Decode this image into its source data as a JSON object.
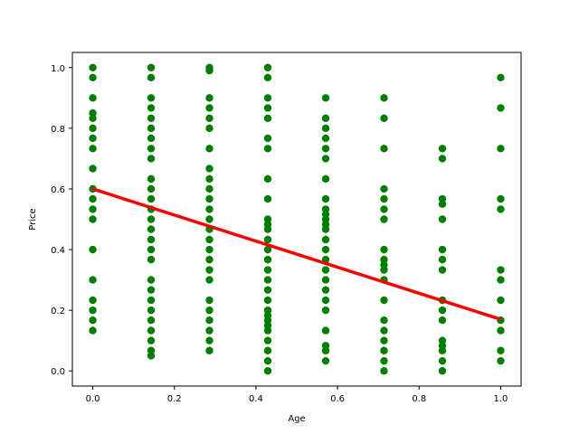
{
  "chart_data": {
    "type": "scatter",
    "title": "",
    "xlabel": "Age",
    "ylabel": "Price",
    "xlim": [
      -0.05,
      1.05
    ],
    "ylim": [
      -0.05,
      1.05
    ],
    "xticks": [
      "0.0",
      "0.2",
      "0.4",
      "0.6",
      "0.8",
      "1.0"
    ],
    "yticks": [
      "0.0",
      "0.2",
      "0.4",
      "0.6",
      "0.8",
      "1.0"
    ],
    "grid": false,
    "legend": "none",
    "colors": {
      "points": "#008000",
      "line": "#ff0000"
    },
    "series": [
      {
        "type": "scatter",
        "points": [
          [
            0,
            1.0
          ],
          [
            0,
            0.967
          ],
          [
            0,
            0.9
          ],
          [
            0,
            0.85
          ],
          [
            0,
            0.833
          ],
          [
            0,
            0.8
          ],
          [
            0,
            0.767
          ],
          [
            0,
            0.733
          ],
          [
            0,
            0.667
          ],
          [
            0,
            0.6
          ],
          [
            0,
            0.567
          ],
          [
            0,
            0.533
          ],
          [
            0,
            0.5
          ],
          [
            0,
            0.4
          ],
          [
            0,
            0.3
          ],
          [
            0,
            0.233
          ],
          [
            0,
            0.2
          ],
          [
            0,
            0.167
          ],
          [
            0,
            0.133
          ],
          [
            0.143,
            1.0
          ],
          [
            0.143,
            0.967
          ],
          [
            0.143,
            0.9
          ],
          [
            0.143,
            0.867
          ],
          [
            0.143,
            0.833
          ],
          [
            0.143,
            0.8
          ],
          [
            0.143,
            0.767
          ],
          [
            0.143,
            0.733
          ],
          [
            0.143,
            0.7
          ],
          [
            0.143,
            0.633
          ],
          [
            0.143,
            0.6
          ],
          [
            0.143,
            0.567
          ],
          [
            0.143,
            0.533
          ],
          [
            0.143,
            0.5
          ],
          [
            0.143,
            0.467
          ],
          [
            0.143,
            0.433
          ],
          [
            0.143,
            0.4
          ],
          [
            0.143,
            0.367
          ],
          [
            0.143,
            0.3
          ],
          [
            0.143,
            0.267
          ],
          [
            0.143,
            0.233
          ],
          [
            0.143,
            0.2
          ],
          [
            0.143,
            0.167
          ],
          [
            0.143,
            0.133
          ],
          [
            0.143,
            0.1
          ],
          [
            0.143,
            0.067
          ],
          [
            0.143,
            0.05
          ],
          [
            0.286,
            1.0
          ],
          [
            0.286,
            0.99
          ],
          [
            0.286,
            0.9
          ],
          [
            0.286,
            0.867
          ],
          [
            0.286,
            0.833
          ],
          [
            0.286,
            0.8
          ],
          [
            0.286,
            0.733
          ],
          [
            0.286,
            0.667
          ],
          [
            0.286,
            0.633
          ],
          [
            0.286,
            0.6
          ],
          [
            0.286,
            0.567
          ],
          [
            0.286,
            0.533
          ],
          [
            0.286,
            0.5
          ],
          [
            0.286,
            0.467
          ],
          [
            0.286,
            0.433
          ],
          [
            0.286,
            0.4
          ],
          [
            0.286,
            0.367
          ],
          [
            0.286,
            0.333
          ],
          [
            0.286,
            0.3
          ],
          [
            0.286,
            0.233
          ],
          [
            0.286,
            0.2
          ],
          [
            0.286,
            0.167
          ],
          [
            0.286,
            0.133
          ],
          [
            0.286,
            0.1
          ],
          [
            0.286,
            0.067
          ],
          [
            0.429,
            1.0
          ],
          [
            0.429,
            0.967
          ],
          [
            0.429,
            0.9
          ],
          [
            0.429,
            0.867
          ],
          [
            0.429,
            0.833
          ],
          [
            0.429,
            0.767
          ],
          [
            0.429,
            0.733
          ],
          [
            0.429,
            0.633
          ],
          [
            0.429,
            0.567
          ],
          [
            0.429,
            0.5
          ],
          [
            0.429,
            0.483
          ],
          [
            0.429,
            0.467
          ],
          [
            0.429,
            0.433
          ],
          [
            0.429,
            0.4
          ],
          [
            0.429,
            0.367
          ],
          [
            0.429,
            0.333
          ],
          [
            0.429,
            0.3
          ],
          [
            0.429,
            0.267
          ],
          [
            0.429,
            0.233
          ],
          [
            0.429,
            0.2
          ],
          [
            0.429,
            0.183
          ],
          [
            0.429,
            0.167
          ],
          [
            0.429,
            0.15
          ],
          [
            0.429,
            0.133
          ],
          [
            0.429,
            0.1
          ],
          [
            0.429,
            0.067
          ],
          [
            0.429,
            0.033
          ],
          [
            0.429,
            0.0
          ],
          [
            0.571,
            0.9
          ],
          [
            0.571,
            0.833
          ],
          [
            0.571,
            0.8
          ],
          [
            0.571,
            0.767
          ],
          [
            0.571,
            0.733
          ],
          [
            0.571,
            0.7
          ],
          [
            0.571,
            0.633
          ],
          [
            0.571,
            0.567
          ],
          [
            0.571,
            0.533
          ],
          [
            0.571,
            0.517
          ],
          [
            0.571,
            0.5
          ],
          [
            0.571,
            0.483
          ],
          [
            0.571,
            0.467
          ],
          [
            0.571,
            0.433
          ],
          [
            0.571,
            0.4
          ],
          [
            0.571,
            0.367
          ],
          [
            0.571,
            0.333
          ],
          [
            0.571,
            0.3
          ],
          [
            0.571,
            0.267
          ],
          [
            0.571,
            0.233
          ],
          [
            0.571,
            0.2
          ],
          [
            0.571,
            0.133
          ],
          [
            0.571,
            0.083
          ],
          [
            0.571,
            0.067
          ],
          [
            0.571,
            0.033
          ],
          [
            0.714,
            0.9
          ],
          [
            0.714,
            0.833
          ],
          [
            0.714,
            0.733
          ],
          [
            0.714,
            0.6
          ],
          [
            0.714,
            0.567
          ],
          [
            0.714,
            0.533
          ],
          [
            0.714,
            0.5
          ],
          [
            0.714,
            0.4
          ],
          [
            0.714,
            0.367
          ],
          [
            0.714,
            0.35
          ],
          [
            0.714,
            0.333
          ],
          [
            0.714,
            0.3
          ],
          [
            0.714,
            0.233
          ],
          [
            0.714,
            0.167
          ],
          [
            0.714,
            0.133
          ],
          [
            0.714,
            0.1
          ],
          [
            0.714,
            0.067
          ],
          [
            0.714,
            0.033
          ],
          [
            0.714,
            0.0
          ],
          [
            0.857,
            0.733
          ],
          [
            0.857,
            0.7
          ],
          [
            0.857,
            0.567
          ],
          [
            0.857,
            0.55
          ],
          [
            0.857,
            0.5
          ],
          [
            0.857,
            0.4
          ],
          [
            0.857,
            0.367
          ],
          [
            0.857,
            0.333
          ],
          [
            0.857,
            0.233
          ],
          [
            0.857,
            0.2
          ],
          [
            0.857,
            0.167
          ],
          [
            0.857,
            0.1
          ],
          [
            0.857,
            0.083
          ],
          [
            0.857,
            0.067
          ],
          [
            0.857,
            0.033
          ],
          [
            0.857,
            0.0
          ],
          [
            1.0,
            0.967
          ],
          [
            1.0,
            0.867
          ],
          [
            1.0,
            0.733
          ],
          [
            1.0,
            0.567
          ],
          [
            1.0,
            0.533
          ],
          [
            1.0,
            0.333
          ],
          [
            1.0,
            0.3
          ],
          [
            1.0,
            0.233
          ],
          [
            1.0,
            0.167
          ],
          [
            1.0,
            0.133
          ],
          [
            1.0,
            0.067
          ],
          [
            1.0,
            0.033
          ]
        ]
      },
      {
        "type": "line",
        "x": [
          0.0,
          1.0
        ],
        "y": [
          0.6,
          0.17
        ]
      }
    ]
  }
}
